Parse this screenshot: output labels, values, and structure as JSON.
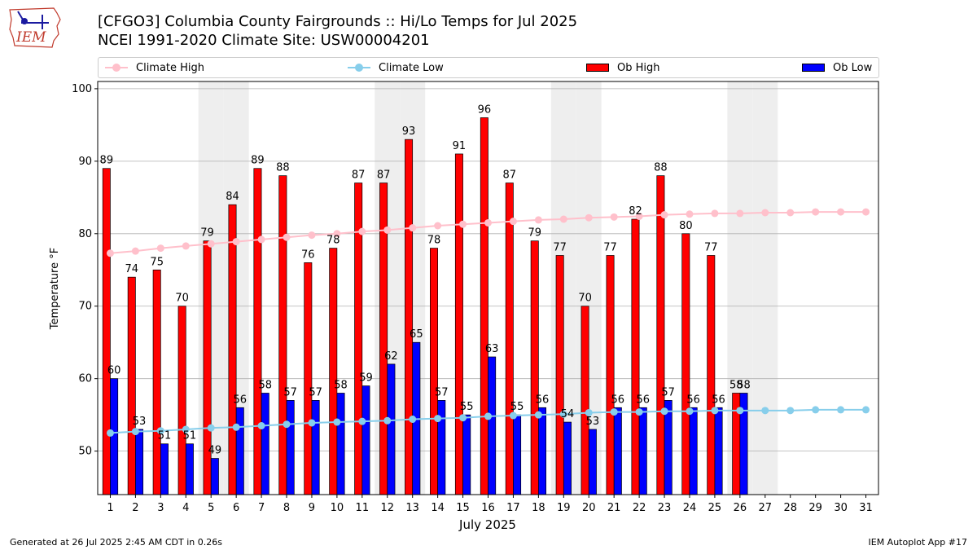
{
  "header": {
    "title_line1": "[CFGO3] Columbia County Fairgrounds :: Hi/Lo Temps for Jul 2025",
    "title_line2": "NCEI 1991-2020 Climate Site: USW00004201"
  },
  "logo": {
    "text": "IEM",
    "icon": "iem-iowa-logo"
  },
  "legend": {
    "climate_high": "Climate High",
    "climate_low": "Climate Low",
    "ob_high": "Ob High",
    "ob_low": "Ob Low"
  },
  "colors": {
    "ob_high": "#ff0000",
    "ob_low": "#0000ff",
    "climate_high": "#ffc0cb",
    "climate_low": "#87ceeb",
    "weekend_band": "#eeeeee",
    "grid": "#b0b0b0"
  },
  "footer": {
    "left": "Generated at 26 Jul 2025 2:45 AM CDT in 0.26s",
    "right": "IEM Autoplot App #17"
  },
  "chart_data": {
    "type": "bar",
    "xlabel": "July 2025",
    "ylabel": "Temperature °F",
    "ylim": [
      44,
      101
    ],
    "yticks": [
      50,
      60,
      70,
      80,
      90,
      100
    ],
    "grid": true,
    "legend_position": "top",
    "categories": [
      "1",
      "2",
      "3",
      "4",
      "5",
      "6",
      "7",
      "8",
      "9",
      "10",
      "11",
      "12",
      "13",
      "14",
      "15",
      "16",
      "17",
      "18",
      "19",
      "20",
      "21",
      "22",
      "23",
      "24",
      "25",
      "26",
      "27",
      "28",
      "29",
      "30",
      "31"
    ],
    "weekend_days": [
      5,
      6,
      12,
      13,
      19,
      20,
      26,
      27
    ],
    "series": [
      {
        "name": "Ob High",
        "kind": "bar",
        "values": [
          89,
          74,
          75,
          70,
          79,
          84,
          89,
          88,
          76,
          78,
          87,
          87,
          93,
          78,
          91,
          96,
          87,
          79,
          77,
          70,
          77,
          82,
          88,
          80,
          77,
          58,
          null,
          null,
          null,
          null,
          null
        ]
      },
      {
        "name": "Ob Low",
        "kind": "bar",
        "values": [
          60,
          53,
          51,
          51,
          49,
          56,
          58,
          57,
          57,
          58,
          59,
          62,
          65,
          57,
          55,
          63,
          55,
          56,
          54,
          53,
          56,
          56,
          57,
          56,
          56,
          58,
          null,
          null,
          null,
          null,
          null
        ]
      },
      {
        "name": "Climate High",
        "kind": "line",
        "values": [
          77.3,
          77.6,
          78.0,
          78.3,
          78.6,
          78.9,
          79.2,
          79.5,
          79.8,
          80.0,
          80.3,
          80.5,
          80.8,
          81.1,
          81.3,
          81.5,
          81.7,
          81.9,
          82.0,
          82.2,
          82.3,
          82.4,
          82.6,
          82.7,
          82.8,
          82.8,
          82.9,
          82.9,
          83.0,
          83.0,
          83.0
        ]
      },
      {
        "name": "Climate Low",
        "kind": "line",
        "values": [
          52.5,
          52.7,
          52.8,
          53.0,
          53.2,
          53.3,
          53.5,
          53.7,
          53.9,
          54.0,
          54.1,
          54.2,
          54.4,
          54.5,
          54.6,
          54.8,
          54.9,
          55.0,
          55.1,
          55.3,
          55.4,
          55.4,
          55.5,
          55.5,
          55.6,
          55.6,
          55.6,
          55.6,
          55.7,
          55.7,
          55.7
        ]
      }
    ]
  }
}
